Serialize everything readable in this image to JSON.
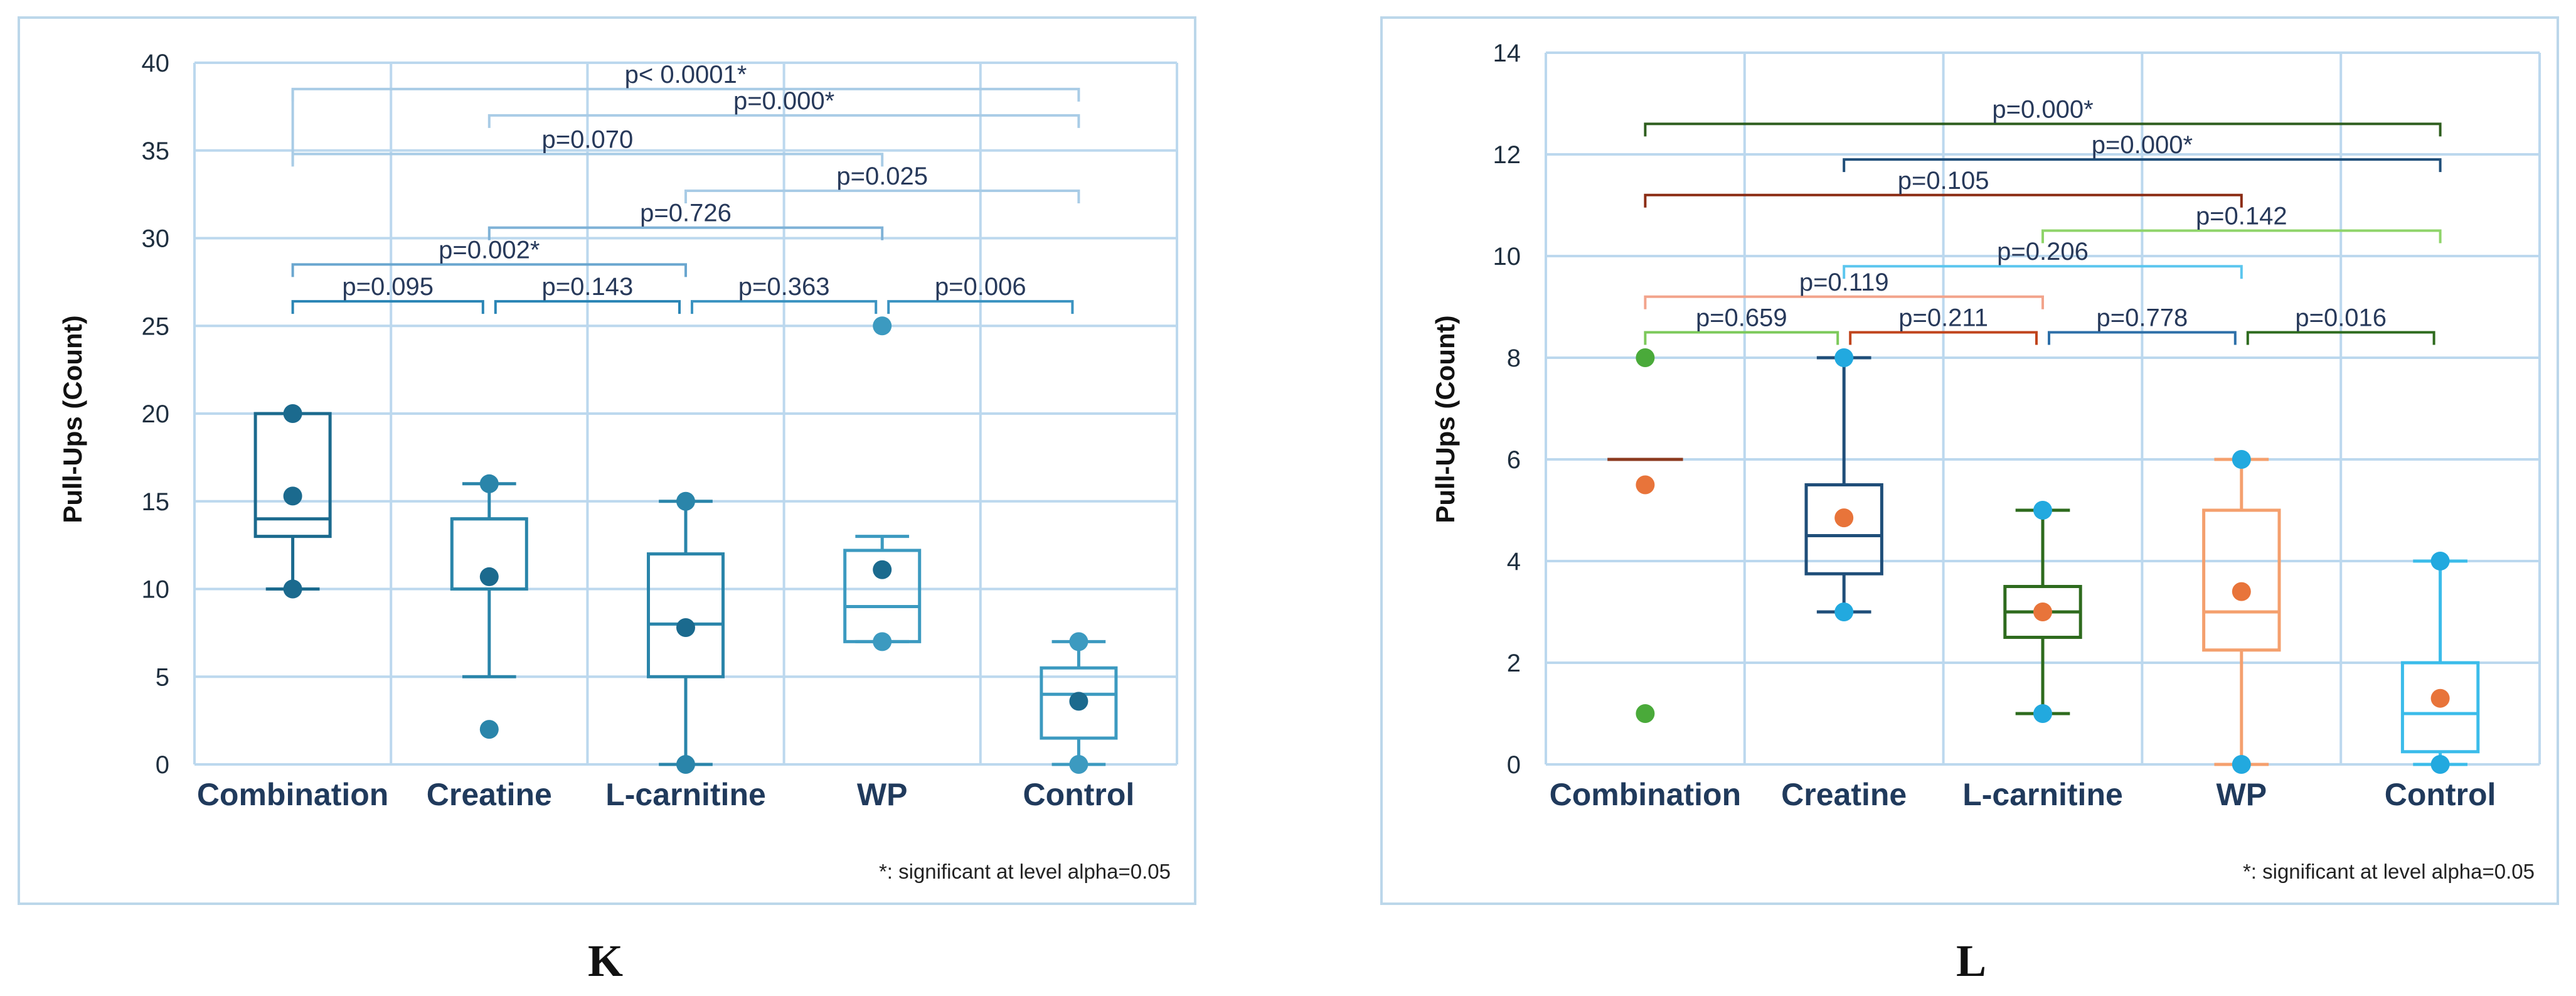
{
  "chart_data": [
    {
      "id": "K",
      "type": "box",
      "panel_label": "K",
      "ylabel": "Pull-Ups (Count)",
      "ylim": [
        0,
        40
      ],
      "yticks": [
        0,
        5,
        10,
        15,
        20,
        25,
        30,
        35,
        40
      ],
      "grid": true,
      "categories": [
        "Combination",
        "Creatine",
        "L-carnitine",
        "WP",
        "Control"
      ],
      "boxes": [
        {
          "category": "Combination",
          "whisker_low": 10,
          "q1": 13,
          "median": 14,
          "q3": 20,
          "whisker_high": 20,
          "mean": 15.3,
          "points": [
            20,
            10
          ],
          "color": "#1b6a8e",
          "mean_color": "#1b6a8e"
        },
        {
          "category": "Creatine",
          "whisker_low": 5,
          "q1": 10,
          "median": 14,
          "q3": 14,
          "whisker_high": 16,
          "mean": 10.7,
          "points": [
            16,
            2
          ],
          "color": "#2a85aa",
          "mean_color": "#1b6a8e"
        },
        {
          "category": "L-carnitine",
          "whisker_low": 0,
          "q1": 5,
          "median": 8,
          "q3": 12,
          "whisker_high": 15,
          "mean": 7.8,
          "points": [
            15,
            0
          ],
          "color": "#2a85aa",
          "mean_color": "#1b6a8e"
        },
        {
          "category": "WP",
          "whisker_low": 7,
          "q1": 7,
          "median": 9,
          "q3": 12.2,
          "whisker_high": 13,
          "mean": 11.1,
          "points": [
            25,
            7
          ],
          "color": "#3c9ac0",
          "mean_color": "#1b6a8e"
        },
        {
          "category": "Control",
          "whisker_low": 0,
          "q1": 1.5,
          "median": 4,
          "q3": 5.5,
          "whisker_high": 7,
          "mean": 3.6,
          "points": [
            7,
            0
          ],
          "color": "#3c9ac0",
          "mean_color": "#1b6a8e"
        }
      ],
      "comparisons": [
        {
          "from": 0,
          "to": 4,
          "y": 38.5,
          "label": "p< 0.0001*",
          "color": "#a9cce6",
          "left_drop": 34.2
        },
        {
          "from": 1,
          "to": 4,
          "y": 37.0,
          "label": "p=0.000*",
          "color": "#a9cce6"
        },
        {
          "from": 0,
          "to": 3,
          "y": 34.8,
          "label": "p=0.070",
          "color": "#a9cce6",
          "right_drop": 34.8
        },
        {
          "from": 2,
          "to": 4,
          "y": 32.7,
          "label": "p=0.025",
          "color": "#a9cce6"
        },
        {
          "from": 1,
          "to": 3,
          "y": 30.6,
          "label": "p=0.726",
          "color": "#7fb2d7"
        },
        {
          "from": 0,
          "to": 2,
          "y": 28.5,
          "label": "p=0.002*",
          "color": "#6aa6cf"
        },
        {
          "from": 0,
          "to": 1,
          "y": 26.4,
          "label": "p=0.095",
          "color": "#2a85b5"
        },
        {
          "from": 1,
          "to": 2,
          "y": 26.4,
          "label": "p=0.143",
          "color": "#2a85b5"
        },
        {
          "from": 2,
          "to": 3,
          "y": 26.4,
          "label": "p=0.363",
          "color": "#3b93c1"
        },
        {
          "from": 3,
          "to": 4,
          "y": 26.4,
          "label": "p=0.006",
          "color": "#3b93c1"
        }
      ],
      "note": "*: significant at level alpha=0.05"
    },
    {
      "id": "L",
      "type": "box",
      "panel_label": "L",
      "ylabel": "Pull-Ups (Count)",
      "ylim": [
        0,
        14
      ],
      "yticks": [
        0,
        2,
        4,
        6,
        8,
        10,
        12,
        14
      ],
      "grid": true,
      "categories": [
        "Combination",
        "Creatine",
        "L-carnitine",
        "WP",
        "Control"
      ],
      "boxes": [
        {
          "category": "Combination",
          "median": 6,
          "flat": true,
          "mean": 5.5,
          "points": [
            8,
            1
          ],
          "color": "#8b3a1f",
          "point_color": "#4aaa3a",
          "mean_color": "#e8743a"
        },
        {
          "category": "Creatine",
          "whisker_low": 3,
          "q1": 3.75,
          "median": 4.5,
          "q3": 5.5,
          "whisker_high": 8,
          "mean": 4.85,
          "points": [
            8,
            3
          ],
          "color": "#1f4e79",
          "point_color": "#22a9df",
          "mean_color": "#e8743a"
        },
        {
          "category": "L-carnitine",
          "whisker_low": 1,
          "q1": 2.5,
          "median": 3,
          "q3": 3.5,
          "whisker_high": 5,
          "mean": 3,
          "points": [
            5,
            1
          ],
          "color": "#2e6b1e",
          "point_color": "#22a9df",
          "mean_color": "#e8743a"
        },
        {
          "category": "WP",
          "whisker_low": 0,
          "q1": 2.25,
          "median": 3,
          "q3": 5,
          "whisker_high": 6,
          "mean": 3.4,
          "points": [
            6,
            0
          ],
          "color": "#f4a06e",
          "point_color": "#22a9df",
          "mean_color": "#e8743a"
        },
        {
          "category": "Control",
          "whisker_low": 0,
          "q1": 0.25,
          "median": 1,
          "q3": 2,
          "whisker_high": 4,
          "mean": 1.3,
          "points": [
            4,
            0
          ],
          "color": "#3bbcea",
          "point_color": "#22a9df",
          "mean_color": "#e8743a"
        }
      ],
      "comparisons": [
        {
          "from": 0,
          "to": 4,
          "y": 12.6,
          "label": "p=0.000*",
          "color": "#2e5e1e"
        },
        {
          "from": 1,
          "to": 4,
          "y": 11.9,
          "label": "p=0.000*",
          "color": "#1f4e79"
        },
        {
          "from": 0,
          "to": 3,
          "y": 11.2,
          "label": "p=0.105",
          "color": "#8b2c14"
        },
        {
          "from": 2,
          "to": 4,
          "y": 10.5,
          "label": "p=0.142",
          "color": "#8fd46a"
        },
        {
          "from": 1,
          "to": 3,
          "y": 9.8,
          "label": "p=0.206",
          "color": "#5bc6ee"
        },
        {
          "from": 0,
          "to": 2,
          "y": 9.2,
          "label": "p=0.119",
          "color": "#f2a48c"
        },
        {
          "from": 0,
          "to": 1,
          "y": 8.5,
          "label": "p=0.659",
          "color": "#7cc95a"
        },
        {
          "from": 1,
          "to": 2,
          "y": 8.5,
          "label": "p=0.211",
          "color": "#c0441c"
        },
        {
          "from": 2,
          "to": 3,
          "y": 8.5,
          "label": "p=0.778",
          "color": "#2d6fa8"
        },
        {
          "from": 3,
          "to": 4,
          "y": 8.5,
          "label": "p=0.016",
          "color": "#2e6b1e"
        }
      ],
      "note": "*: significant at level alpha=0.05"
    }
  ]
}
